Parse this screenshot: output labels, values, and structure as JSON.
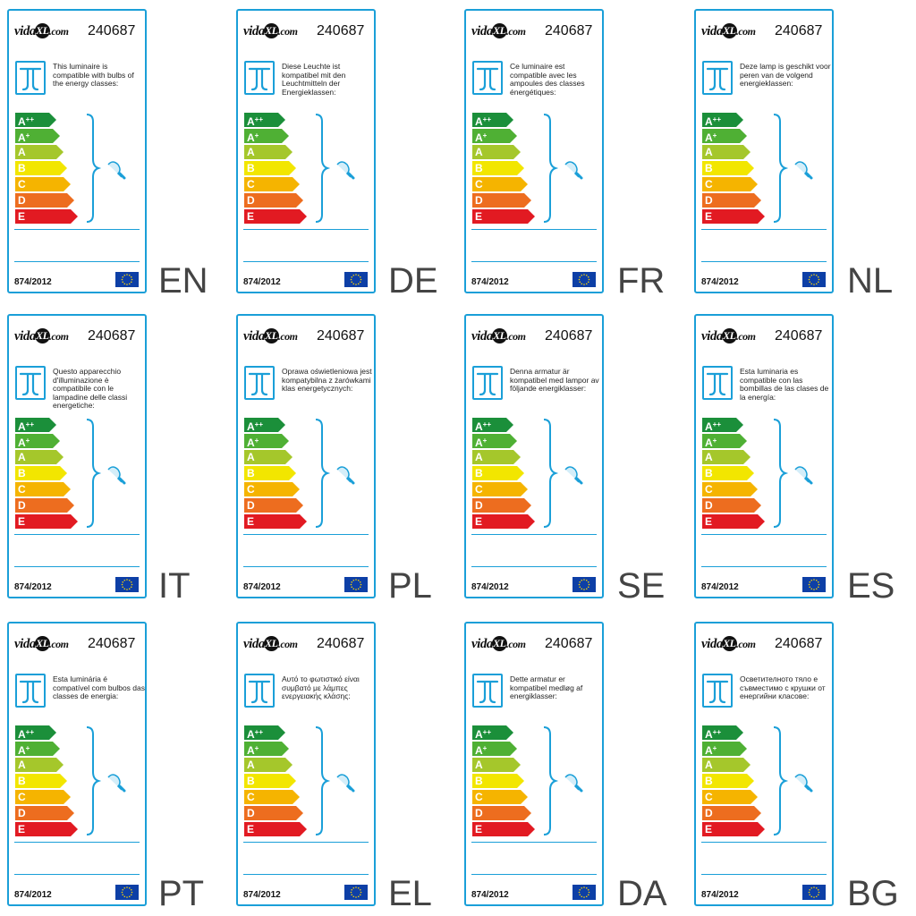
{
  "brand": {
    "name": "vida",
    "xl": "XL",
    "domain": ".com"
  },
  "product_number": "240687",
  "regulation": "874/2012",
  "energy_classes": [
    "A++",
    "A+",
    "A",
    "B",
    "C",
    "D",
    "E"
  ],
  "class_colors": [
    "#1b8f3a",
    "#4fb034",
    "#a5c72b",
    "#f2e600",
    "#f5b400",
    "#ed6d1f",
    "#e21a22"
  ],
  "accent_color": "#1a9fd8",
  "labels": [
    {
      "lang": "EN",
      "text": "This luminaire is compatible with bulbs of the energy classes:"
    },
    {
      "lang": "DE",
      "text": "Diese Leuchte ist kompatibel mit den Leuchtmitteln der Energieklassen:"
    },
    {
      "lang": "FR",
      "text": "Ce luminaire est compatible avec les ampoules des classes énergétiques:"
    },
    {
      "lang": "NL",
      "text": "Deze lamp is geschikt voor peren van de volgend energieklassen:"
    },
    {
      "lang": "IT",
      "text": "Questo apparecchio d'illuminazione è compatibile con le lampadine delle classi energetiche:"
    },
    {
      "lang": "PL",
      "text": "Oprawa oświetleniowa jest kompatybilna z żarówkami klas energetycznych:"
    },
    {
      "lang": "SE",
      "text": "Denna armatur är kompatibel med lampor av följande energiklasser:"
    },
    {
      "lang": "ES",
      "text": "Esta luminaria es compatible con las bombillas de las clases de la energía:"
    },
    {
      "lang": "PT",
      "text": "Esta luminária é compatível com bulbos das classes de energia:"
    },
    {
      "lang": "EL",
      "text": "Αυτό το φωτιστικό είναι συμβατό με λάμπες ενεργειακής κλάσης:"
    },
    {
      "lang": "DA",
      "text": "Dette armatur er kompatibel medløg af energiklasser:"
    },
    {
      "lang": "BG",
      "text": "Осветителното тяло е съвместимо с крушки от енергийни класове:"
    }
  ]
}
